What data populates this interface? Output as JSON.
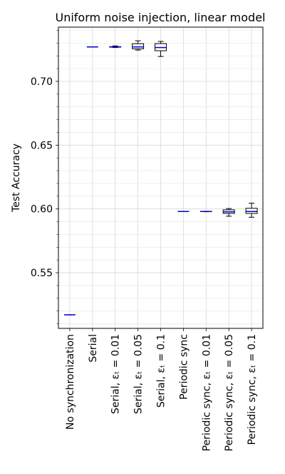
{
  "chart_data": {
    "type": "box",
    "title": "Uniform noise injection, linear model",
    "y_label": "Test Accuracy",
    "categories": [
      "No synchronization",
      "Serial",
      "Serial, εₜ = 0.01",
      "Serial, εₜ = 0.05",
      "Serial, εₜ = 0.1",
      "Periodic sync",
      "Periodic sync, εₜ = 0.01",
      "Periodic sync, εₜ = 0.05",
      "Periodic sync, εₜ = 0.1"
    ],
    "boxes": [
      {
        "whislo": 0.517,
        "q1": 0.517,
        "med": 0.517,
        "q3": 0.517,
        "whishi": 0.517
      },
      {
        "whislo": 0.727,
        "q1": 0.727,
        "med": 0.727,
        "q3": 0.727,
        "whishi": 0.727
      },
      {
        "whislo": 0.7265,
        "q1": 0.7268,
        "med": 0.727,
        "q3": 0.7272,
        "whishi": 0.7278
      },
      {
        "whislo": 0.7245,
        "q1": 0.7255,
        "med": 0.727,
        "q3": 0.7295,
        "whishi": 0.7318
      },
      {
        "whislo": 0.7195,
        "q1": 0.724,
        "med": 0.7265,
        "q3": 0.7296,
        "whishi": 0.7313
      },
      {
        "whislo": 0.598,
        "q1": 0.598,
        "med": 0.598,
        "q3": 0.598,
        "whishi": 0.598
      },
      {
        "whislo": 0.5978,
        "q1": 0.5979,
        "med": 0.598,
        "q3": 0.5981,
        "whishi": 0.5982
      },
      {
        "whislo": 0.5943,
        "q1": 0.5965,
        "med": 0.5977,
        "q3": 0.5993,
        "whishi": 0.6003
      },
      {
        "whislo": 0.5935,
        "q1": 0.5965,
        "med": 0.598,
        "q3": 0.6005,
        "whishi": 0.6045
      }
    ],
    "box_color": "#000000",
    "box_fill": "#ffffff",
    "median_color": "#0000cc",
    "ylim": [
      0.5064,
      0.7425
    ],
    "yticks": [
      0.55,
      {
        "value": 0.6,
        "label": "0.60"
      },
      0.65,
      {
        "value": 0.7,
        "label": "0.70"
      }
    ],
    "yminorticks": [
      0.51,
      0.52,
      0.53,
      0.54,
      0.56,
      0.57,
      0.58,
      0.59,
      0.61,
      0.62,
      0.63,
      0.64,
      0.66,
      0.67,
      0.68,
      0.69,
      0.71,
      0.72,
      0.73,
      0.74
    ],
    "grid": true
  }
}
